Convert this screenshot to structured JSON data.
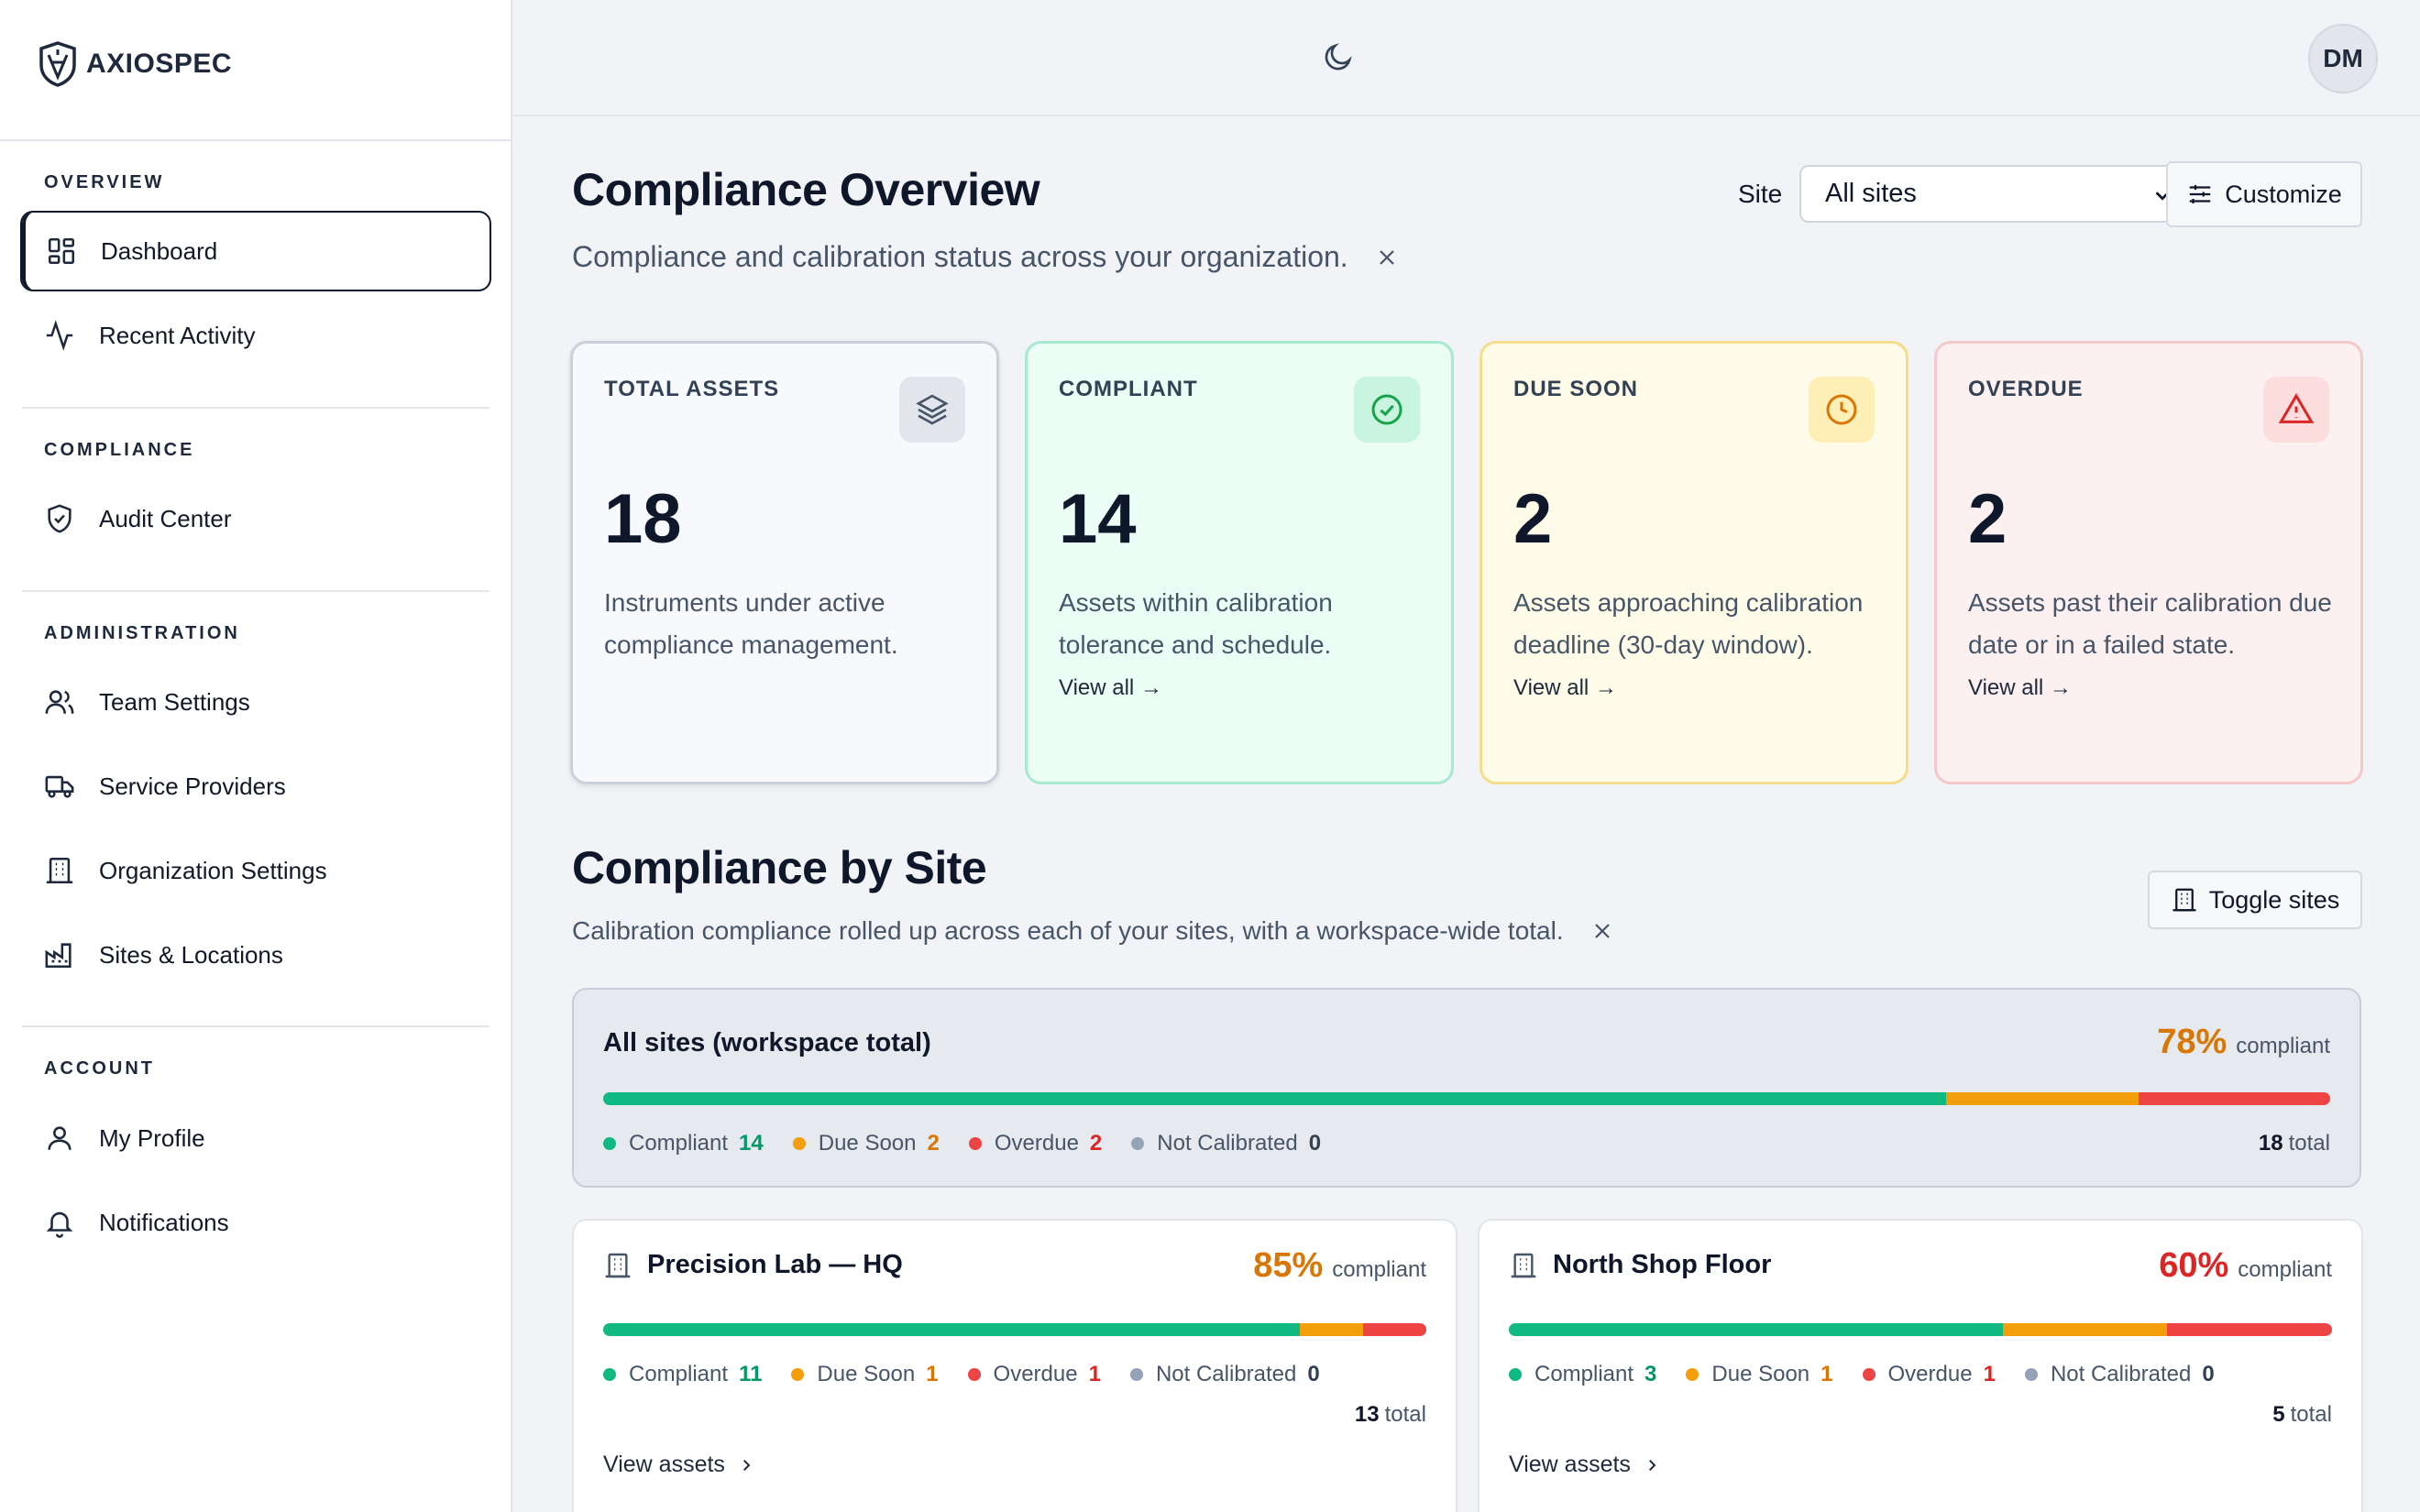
{
  "app": {
    "name": "AXIOSPEC"
  },
  "sidebar": {
    "sections": [
      {
        "title": "OVERVIEW",
        "items": [
          {
            "label": "Dashboard",
            "icon": "dashboard-icon"
          },
          {
            "label": "Recent Activity",
            "icon": "activity-icon"
          }
        ]
      },
      {
        "title": "COMPLIANCE",
        "items": [
          {
            "label": "Audit Center",
            "icon": "shield-check-icon"
          }
        ]
      },
      {
        "title": "ADMINISTRATION",
        "items": [
          {
            "label": "Team Settings",
            "icon": "users-icon"
          },
          {
            "label": "Service Providers",
            "icon": "truck-icon"
          },
          {
            "label": "Organization Settings",
            "icon": "building-icon"
          },
          {
            "label": "Sites & Locations",
            "icon": "factory-icon"
          }
        ]
      },
      {
        "title": "ACCOUNT",
        "items": [
          {
            "label": "My Profile",
            "icon": "user-icon"
          },
          {
            "label": "Notifications",
            "icon": "bell-icon"
          }
        ]
      }
    ],
    "active": "Dashboard"
  },
  "header": {
    "avatar_initials": "DM",
    "theme_icon": "moon-icon"
  },
  "overview": {
    "title": "Compliance Overview",
    "subtitle": "Compliance and calibration status across your organization.",
    "site_label": "Site",
    "site_value": "All sites",
    "customize_label": "Customize"
  },
  "cards": [
    {
      "label": "TOTAL ASSETS",
      "value": "18",
      "desc": "Instruments under active compliance management.",
      "link": "",
      "icon": "layers-icon",
      "accent": "#64748b"
    },
    {
      "label": "COMPLIANT",
      "value": "14",
      "desc": "Assets within calibration tolerance and schedule.",
      "link": "View all →",
      "icon": "check-circle-icon",
      "accent": "#16a34a"
    },
    {
      "label": "DUE SOON",
      "value": "2",
      "desc": "Assets approaching calibration deadline (30-day window).",
      "link": "View all →",
      "icon": "clock-icon",
      "accent": "#d97706"
    },
    {
      "label": "OVERDUE",
      "value": "2",
      "desc": "Assets past their calibration due date or in a failed state.",
      "link": "View all →",
      "icon": "alert-triangle-icon",
      "accent": "#dc2626"
    }
  ],
  "by_site": {
    "title": "Compliance by Site",
    "subtitle": "Calibration compliance rolled up across each of your sites, with a workspace-wide total.",
    "toggle_label": "Toggle sites",
    "compliant_word": "compliant",
    "total_word": "total",
    "view_assets": "View assets",
    "legend_labels": {
      "compliant": "Compliant",
      "due_soon": "Due Soon",
      "overdue": "Overdue",
      "not_calibrated": "Not Calibrated"
    },
    "workspace": {
      "name": "All sites (workspace total)",
      "percent": "78%",
      "compliant": 14,
      "due_soon": 2,
      "overdue": 2,
      "not_calibrated": 0,
      "total": 18
    },
    "sites": [
      {
        "name": "Precision Lab — HQ",
        "percent": "85%",
        "percent_color": "#d97706",
        "compliant": 11,
        "due_soon": 1,
        "overdue": 1,
        "not_calibrated": 0,
        "total": 13
      },
      {
        "name": "North Shop Floor",
        "percent": "60%",
        "percent_color": "#dc2626",
        "compliant": 3,
        "due_soon": 1,
        "overdue": 1,
        "not_calibrated": 0,
        "total": 5
      }
    ]
  },
  "colors": {
    "compliant": "#10b981",
    "due_soon": "#f59e0b",
    "overdue": "#ef4444",
    "not_calibrated": "#94a3b8"
  }
}
